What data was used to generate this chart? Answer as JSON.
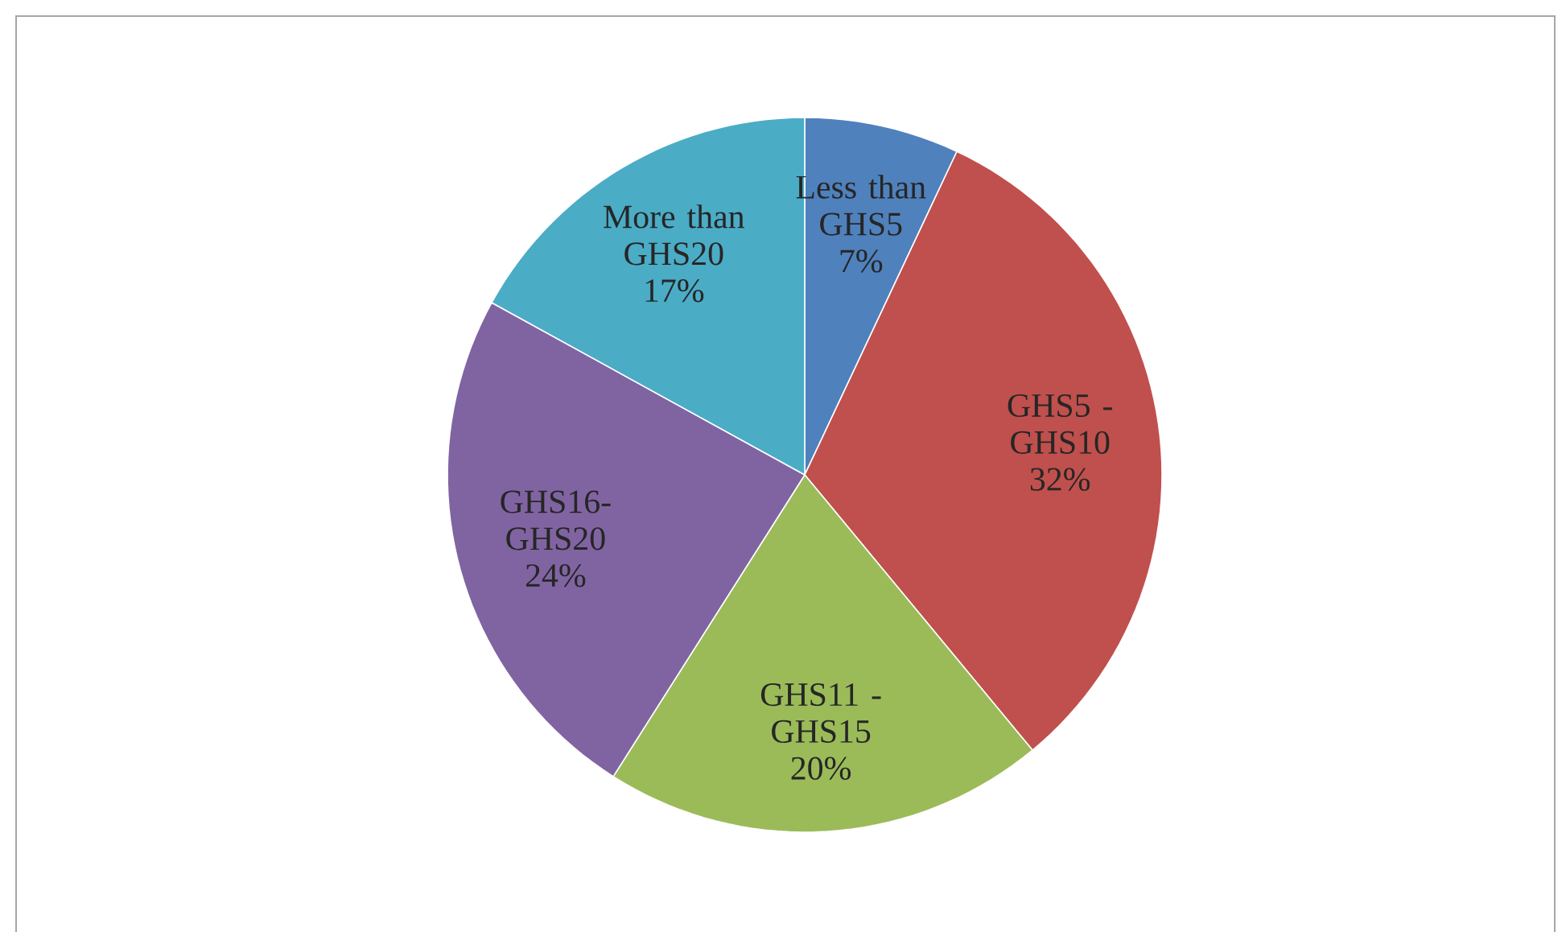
{
  "chart_data": {
    "type": "pie",
    "categories": [
      "Less than GHS5",
      "GHS5 - GHS10",
      "GHS11 - GHS15",
      "GHS16-GHS20",
      "More than GHS20"
    ],
    "values": [
      7,
      32,
      20,
      24,
      17
    ],
    "value_labels": [
      "7%",
      "32%",
      "20%",
      "24%",
      "17%"
    ],
    "colors": [
      "#4f81bd",
      "#c0504d",
      "#9bbb59",
      "#8064a2",
      "#4bacc6"
    ]
  }
}
